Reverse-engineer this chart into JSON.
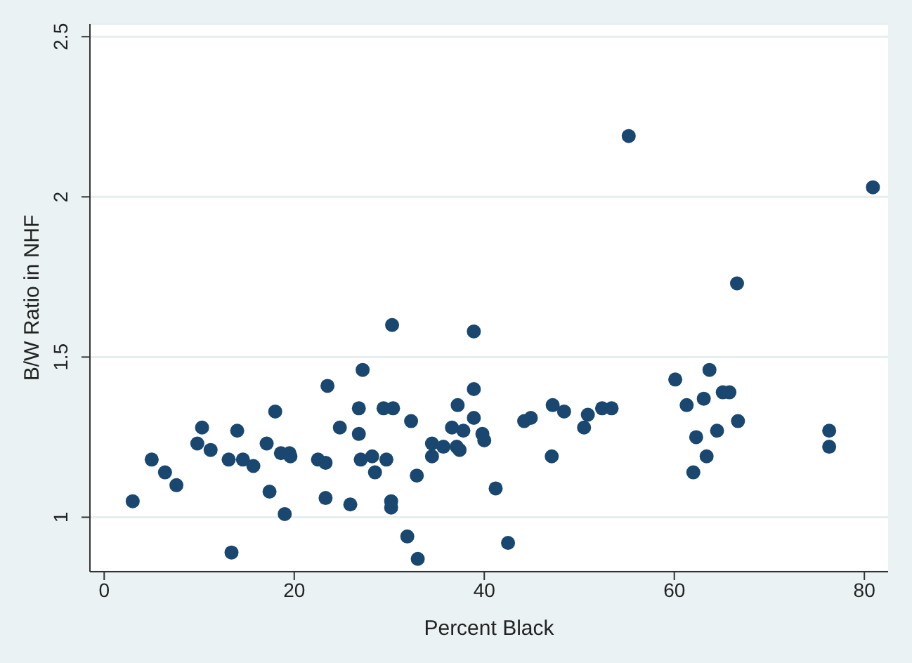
{
  "chart_data": {
    "type": "scatter",
    "xlabel": "Percent Black",
    "ylabel": "B/W Ratio in NHF",
    "x": [
      3.0,
      5.0,
      6.4,
      7.6,
      9.8,
      10.3,
      11.2,
      13.1,
      13.4,
      14.0,
      14.6,
      15.7,
      17.1,
      17.4,
      18.0,
      18.6,
      19.5,
      19.6,
      19.0,
      22.5,
      23.3,
      23.3,
      23.5,
      24.8,
      25.9,
      26.8,
      26.8,
      27.0,
      27.2,
      30.3,
      38.9,
      29.4,
      30.4,
      32.3,
      28.2,
      29.7,
      28.5,
      30.2,
      30.2,
      31.9,
      33.0,
      32.9,
      34.5,
      34.5,
      35.7,
      36.6,
      37.1,
      37.4,
      37.2,
      37.8,
      38.9,
      38.9,
      39.8,
      40.0,
      41.2,
      42.5,
      44.2,
      44.9,
      47.1,
      47.2,
      48.4,
      50.5,
      50.9,
      52.4,
      53.4,
      55.2,
      80.9,
      66.6,
      60.1,
      63.7,
      61.3,
      63.1,
      65.1,
      65.8,
      66.7,
      62.3,
      64.5,
      63.4,
      62.0,
      76.3,
      76.3
    ],
    "values": [
      1.05,
      1.18,
      1.14,
      1.1,
      1.23,
      1.28,
      1.21,
      1.18,
      0.89,
      1.27,
      1.18,
      1.16,
      1.23,
      1.08,
      1.33,
      1.2,
      1.2,
      1.19,
      1.01,
      1.18,
      1.17,
      1.06,
      1.41,
      1.28,
      1.04,
      1.34,
      1.26,
      1.18,
      1.46,
      1.6,
      1.58,
      1.34,
      1.34,
      1.3,
      1.19,
      1.18,
      1.14,
      1.05,
      1.03,
      0.94,
      0.87,
      1.13,
      1.23,
      1.19,
      1.22,
      1.28,
      1.22,
      1.21,
      1.35,
      1.27,
      1.4,
      1.31,
      1.26,
      1.24,
      1.09,
      0.92,
      1.3,
      1.31,
      1.19,
      1.35,
      1.33,
      1.28,
      1.32,
      1.34,
      1.34,
      2.19,
      2.03,
      1.73,
      1.43,
      1.46,
      1.35,
      1.37,
      1.39,
      1.39,
      1.3,
      1.25,
      1.27,
      1.19,
      1.14,
      1.27,
      1.22
    ],
    "color": "#1a476f",
    "marker": "circle",
    "grid": "y",
    "legend": false,
    "xlim": [
      -1.5,
      82.5
    ],
    "xticks": [
      0,
      20,
      40,
      60,
      80
    ],
    "ylim": [
      0.83,
      2.54
    ],
    "yticks": [
      1,
      1.5,
      2,
      2.5
    ]
  }
}
